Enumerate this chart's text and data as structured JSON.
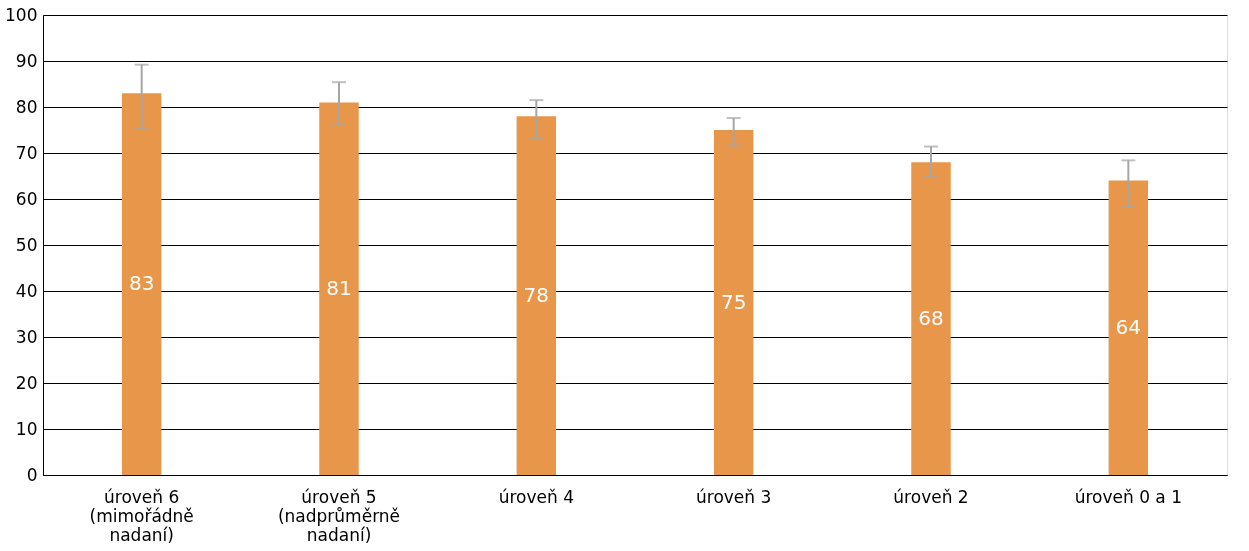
{
  "chart_data": {
    "type": "bar",
    "categories": [
      "úroveň 6 (mimořádně nadaní)",
      "úroveň 5 (nadprůměrně nadaní)",
      "úroveň 4",
      "úroveň 3",
      "úroveň 2",
      "úroveň 0 a 1"
    ],
    "values": [
      83,
      81,
      78,
      75,
      68,
      64
    ],
    "errors": [
      [
        75.3,
        89.2
      ],
      [
        76.2,
        85.4
      ],
      [
        73.2,
        81.5
      ],
      [
        71.6,
        77.6
      ],
      [
        64.8,
        71.4
      ],
      [
        58.4,
        68.4
      ]
    ],
    "color": "#e8964a",
    "data_labels": true,
    "ylim": [
      0,
      100
    ],
    "yticks": [
      0,
      10,
      20,
      30,
      40,
      50,
      60,
      70,
      80,
      90,
      100
    ],
    "grid": "y"
  }
}
